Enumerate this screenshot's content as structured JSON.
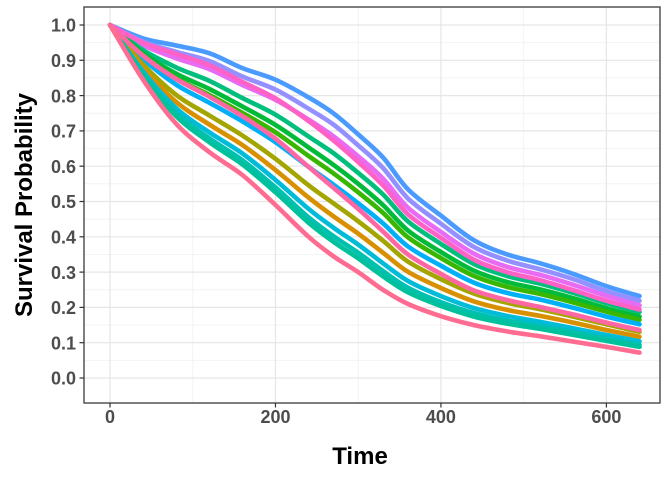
{
  "chart_data": {
    "type": "line",
    "title": "",
    "xlabel": "Time",
    "ylabel": "Survival Probability",
    "xlim": [
      0,
      640
    ],
    "ylim": [
      0,
      1
    ],
    "x_ticks": {
      "values": [
        0,
        200,
        400,
        600
      ],
      "labels": [
        "0",
        "200",
        "400",
        "600"
      ]
    },
    "y_ticks": {
      "values": [
        0,
        0.1,
        0.2,
        0.3,
        0.4,
        0.5,
        0.6,
        0.7,
        0.8,
        0.9,
        1.0
      ],
      "labels": [
        "0.0",
        "0.1",
        "0.2",
        "0.3",
        "0.4",
        "0.5",
        "0.6",
        "0.7",
        "0.8",
        "0.9",
        "1.0"
      ]
    },
    "x_minor_gridlines": [
      100,
      300,
      500
    ],
    "y_minor_gridlines": [
      0.05,
      0.15,
      0.25,
      0.35,
      0.45,
      0.55,
      0.65,
      0.75,
      0.85,
      0.95
    ],
    "grid": "major+minor",
    "legend_position": "none",
    "x": [
      0,
      40,
      80,
      120,
      160,
      200,
      240,
      270,
      300,
      330,
      360,
      400,
      440,
      480,
      520,
      560,
      600,
      640
    ],
    "series": [
      {
        "name": "blue",
        "color": "#4B9BFF",
        "values": [
          1,
          0.962,
          0.942,
          0.92,
          0.878,
          0.845,
          0.795,
          0.75,
          0.69,
          0.625,
          0.535,
          0.46,
          0.39,
          0.35,
          0.325,
          0.295,
          0.26,
          0.232
        ]
      },
      {
        "name": "periwinkle",
        "color": "#9590FF",
        "values": [
          1,
          0.953,
          0.924,
          0.898,
          0.854,
          0.817,
          0.763,
          0.718,
          0.659,
          0.595,
          0.509,
          0.437,
          0.371,
          0.333,
          0.308,
          0.28,
          0.246,
          0.219
        ]
      },
      {
        "name": "orchid",
        "color": "#E76BF3",
        "values": [
          1,
          0.943,
          0.906,
          0.875,
          0.83,
          0.788,
          0.732,
          0.685,
          0.628,
          0.565,
          0.483,
          0.414,
          0.352,
          0.315,
          0.292,
          0.264,
          0.233,
          0.206
        ]
      },
      {
        "name": "teal-green",
        "color": "#00BF7D",
        "values": [
          1,
          0.929,
          0.88,
          0.842,
          0.793,
          0.746,
          0.684,
          0.637,
          0.581,
          0.52,
          0.444,
          0.38,
          0.323,
          0.289,
          0.267,
          0.241,
          0.212,
          0.187
        ]
      },
      {
        "name": "emerald",
        "color": "#00BA38",
        "values": [
          1,
          0.92,
          0.862,
          0.819,
          0.769,
          0.717,
          0.653,
          0.604,
          0.55,
          0.49,
          0.418,
          0.357,
          0.304,
          0.272,
          0.251,
          0.226,
          0.198,
          0.174
        ]
      },
      {
        "name": "green",
        "color": "#39B600",
        "values": [
          1,
          0.913,
          0.849,
          0.802,
          0.751,
          0.696,
          0.629,
          0.58,
          0.526,
          0.468,
          0.399,
          0.34,
          0.289,
          0.258,
          0.238,
          0.214,
          0.188,
          0.165
        ]
      },
      {
        "name": "sky-blue",
        "color": "#00B0F6",
        "values": [
          1,
          0.904,
          0.831,
          0.78,
          0.727,
          0.668,
          0.598,
          0.548,
          0.495,
          0.438,
          0.373,
          0.318,
          0.27,
          0.241,
          0.222,
          0.199,
          0.174,
          0.152
        ]
      },
      {
        "name": "olive",
        "color": "#A3A500",
        "values": [
          1,
          0.888,
          0.802,
          0.744,
          0.687,
          0.621,
          0.546,
          0.495,
          0.444,
          0.389,
          0.33,
          0.28,
          0.239,
          0.213,
          0.195,
          0.174,
          0.152,
          0.131
        ]
      },
      {
        "name": "goldenrod",
        "color": "#D89000",
        "values": [
          1,
          0.878,
          0.782,
          0.718,
          0.66,
          0.589,
          0.511,
          0.458,
          0.409,
          0.355,
          0.301,
          0.255,
          0.217,
          0.193,
          0.176,
          0.157,
          0.136,
          0.117
        ]
      },
      {
        "name": "cyan",
        "color": "#00BCD8",
        "values": [
          1,
          0.868,
          0.764,
          0.696,
          0.636,
          0.561,
          0.479,
          0.426,
          0.378,
          0.325,
          0.275,
          0.232,
          0.198,
          0.176,
          0.159,
          0.141,
          0.122,
          0.104
        ]
      },
      {
        "name": "teal",
        "color": "#00C0AF",
        "values": [
          1,
          0.861,
          0.751,
          0.679,
          0.617,
          0.54,
          0.455,
          0.402,
          0.355,
          0.303,
          0.256,
          0.215,
          0.184,
          0.163,
          0.147,
          0.13,
          0.112,
          0.094
        ]
      },
      {
        "name": "sea-green",
        "color": "#00C19C",
        "values": [
          1,
          0.857,
          0.742,
          0.668,
          0.605,
          0.526,
          0.44,
          0.386,
          0.339,
          0.288,
          0.243,
          0.204,
          0.174,
          0.154,
          0.139,
          0.122,
          0.105,
          0.088
        ]
      },
      {
        "name": "magenta",
        "color": "#FF61C7",
        "values": [
          1,
          0.95,
          0.918,
          0.886,
          0.839,
          0.792,
          0.728,
          0.673,
          0.612,
          0.546,
          0.464,
          0.397,
          0.335,
          0.3,
          0.277,
          0.249,
          0.219,
          0.194
        ]
      },
      {
        "name": "hot-pink",
        "color": "#FF67A4",
        "values": [
          1,
          0.913,
          0.847,
          0.797,
          0.742,
          0.678,
          0.598,
          0.539,
          0.479,
          0.415,
          0.35,
          0.295,
          0.248,
          0.221,
          0.201,
          0.18,
          0.157,
          0.136
        ]
      },
      {
        "name": "rose",
        "color": "#FF6C91",
        "values": [
          1,
          0.845,
          0.72,
          0.64,
          0.575,
          0.49,
          0.4,
          0.345,
          0.3,
          0.25,
          0.21,
          0.175,
          0.15,
          0.132,
          0.118,
          0.103,
          0.088,
          0.072
        ]
      }
    ]
  },
  "theme": {
    "panel_background": "#FFFFFF",
    "grid_major_color": "#E6E6E6",
    "grid_minor_color": "#F2F2F2",
    "panel_border_color": "#545454",
    "tick_color": "#333333",
    "axis_text_color": "#4D4D4D",
    "axis_title_color": "#000000",
    "line_width": 4.6
  }
}
